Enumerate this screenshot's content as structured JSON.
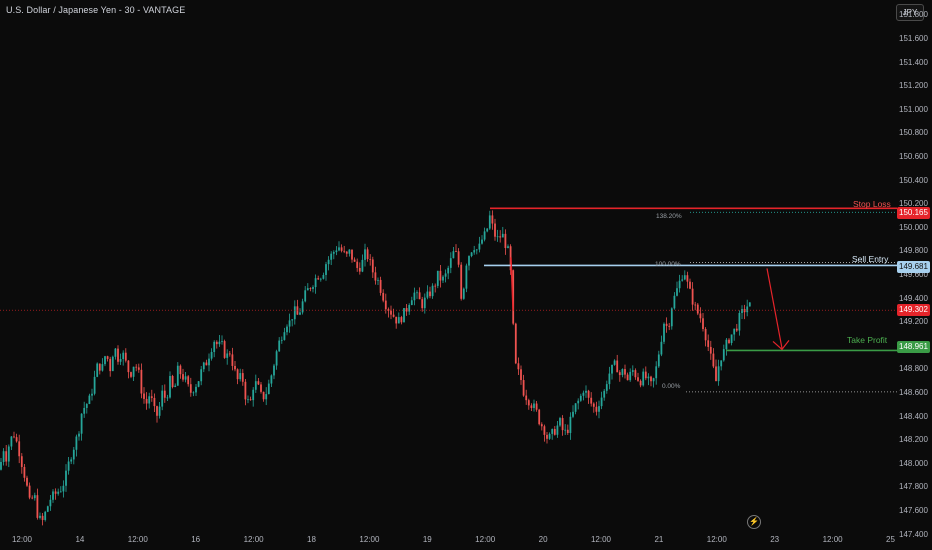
{
  "header": {
    "title": "U.S. Dollar / Japanese Yen - 30 - VANTAGE",
    "currency": "JPY"
  },
  "colors": {
    "up": "#26a69a",
    "down": "#ef5350",
    "stop": "#e5242a",
    "entry": "#a7d0ee",
    "profit": "#3a9b46",
    "current": "#e5242a"
  },
  "levels": {
    "stop_loss": {
      "label": "Stop Loss",
      "price": "150.165",
      "fib": "138.20%"
    },
    "sell_entry": {
      "label": "Sell Entry",
      "price": "149.681",
      "fib": "100.00%"
    },
    "take_profit": {
      "label": "Take Profit",
      "price": "148.961"
    },
    "fib_zero": {
      "fib": "0.00%",
      "value": 148.61
    },
    "current_price": "149.302"
  },
  "footer": {
    "icon": "lightning-icon"
  },
  "chart_data": {
    "type": "candlestick",
    "title": "U.S. Dollar / Japanese Yen - 30 - VANTAGE",
    "y_axis": {
      "ticks": [
        "151.800",
        "151.600",
        "151.400",
        "151.200",
        "151.000",
        "150.800",
        "150.600",
        "150.400",
        "150.200",
        "150.000",
        "149.800",
        "149.600",
        "149.400",
        "149.200",
        "149.000",
        "148.800",
        "148.600",
        "148.400",
        "148.200",
        "148.000",
        "147.800",
        "147.600",
        "147.400"
      ]
    },
    "x_axis": {
      "ticks": [
        "12:00",
        "14",
        "12:00",
        "16",
        "12:00",
        "18",
        "12:00",
        "19",
        "12:00",
        "20",
        "12:00",
        "21",
        "12:00",
        "23",
        "12:00",
        "25"
      ]
    },
    "ylim": [
      147.27,
      151.93
    ],
    "grid": false,
    "price_path": [
      [
        0,
        147.95
      ],
      [
        3,
        148.15
      ],
      [
        6,
        148.05
      ],
      [
        10,
        148.2
      ],
      [
        14,
        148.25
      ],
      [
        18,
        148.15
      ],
      [
        22,
        148.0
      ],
      [
        26,
        147.85
      ],
      [
        30,
        147.65
      ],
      [
        34,
        147.75
      ],
      [
        38,
        147.55
      ],
      [
        42,
        147.5
      ],
      [
        46,
        147.6
      ],
      [
        50,
        147.7
      ],
      [
        56,
        147.75
      ],
      [
        62,
        147.8
      ],
      [
        66,
        147.9
      ],
      [
        70,
        148.05
      ],
      [
        74,
        148.15
      ],
      [
        78,
        148.25
      ],
      [
        82,
        148.45
      ],
      [
        86,
        148.5
      ],
      [
        90,
        148.55
      ],
      [
        94,
        148.7
      ],
      [
        98,
        148.85
      ],
      [
        102,
        148.8
      ],
      [
        106,
        148.95
      ],
      [
        110,
        148.8
      ],
      [
        114,
        149.0
      ],
      [
        118,
        148.9
      ],
      [
        122,
        148.95
      ],
      [
        126,
        148.85
      ],
      [
        130,
        148.75
      ],
      [
        134,
        148.85
      ],
      [
        138,
        148.8
      ],
      [
        142,
        148.6
      ],
      [
        146,
        148.5
      ],
      [
        150,
        148.6
      ],
      [
        154,
        148.45
      ],
      [
        158,
        148.4
      ],
      [
        162,
        148.6
      ],
      [
        166,
        148.55
      ],
      [
        170,
        148.7
      ],
      [
        174,
        148.6
      ],
      [
        178,
        148.8
      ],
      [
        182,
        148.75
      ],
      [
        186,
        148.7
      ],
      [
        190,
        148.6
      ],
      [
        194,
        148.65
      ],
      [
        198,
        148.7
      ],
      [
        202,
        148.8
      ],
      [
        206,
        148.85
      ],
      [
        210,
        148.95
      ],
      [
        214,
        149.05
      ],
      [
        218,
        149.0
      ],
      [
        222,
        149.0
      ],
      [
        226,
        148.9
      ],
      [
        230,
        148.95
      ],
      [
        234,
        148.8
      ],
      [
        238,
        148.7
      ],
      [
        242,
        148.75
      ],
      [
        246,
        148.55
      ],
      [
        250,
        148.5
      ],
      [
        254,
        148.7
      ],
      [
        258,
        148.65
      ],
      [
        262,
        148.55
      ],
      [
        266,
        148.6
      ],
      [
        270,
        148.7
      ],
      [
        274,
        148.85
      ],
      [
        278,
        149.0
      ],
      [
        282,
        149.1
      ],
      [
        286,
        149.2
      ],
      [
        290,
        149.2
      ],
      [
        294,
        149.3
      ],
      [
        298,
        149.25
      ],
      [
        302,
        149.35
      ],
      [
        306,
        149.45
      ],
      [
        310,
        149.5
      ],
      [
        314,
        149.55
      ],
      [
        318,
        149.6
      ],
      [
        322,
        149.6
      ],
      [
        326,
        149.7
      ],
      [
        330,
        149.75
      ],
      [
        334,
        149.8
      ],
      [
        338,
        149.85
      ],
      [
        342,
        149.8
      ],
      [
        346,
        149.75
      ],
      [
        350,
        149.8
      ],
      [
        354,
        149.7
      ],
      [
        358,
        149.65
      ],
      [
        362,
        149.7
      ],
      [
        366,
        149.8
      ],
      [
        370,
        149.7
      ],
      [
        374,
        149.6
      ],
      [
        378,
        149.55
      ],
      [
        382,
        149.45
      ],
      [
        386,
        149.35
      ],
      [
        390,
        149.3
      ],
      [
        394,
        149.25
      ],
      [
        398,
        149.2
      ],
      [
        402,
        149.25
      ],
      [
        406,
        149.3
      ],
      [
        410,
        149.4
      ],
      [
        414,
        149.45
      ],
      [
        418,
        149.4
      ],
      [
        422,
        149.35
      ],
      [
        426,
        149.4
      ],
      [
        430,
        149.45
      ],
      [
        434,
        149.5
      ],
      [
        438,
        149.6
      ],
      [
        442,
        149.55
      ],
      [
        446,
        149.6
      ],
      [
        450,
        149.7
      ],
      [
        454,
        149.8
      ],
      [
        458,
        149.75
      ],
      [
        462,
        149.35
      ],
      [
        466,
        149.7
      ],
      [
        470,
        149.8
      ],
      [
        474,
        149.85
      ],
      [
        478,
        149.8
      ],
      [
        482,
        149.9
      ],
      [
        486,
        149.95
      ],
      [
        490,
        150.1
      ],
      [
        494,
        149.95
      ],
      [
        498,
        149.9
      ],
      [
        502,
        149.95
      ],
      [
        506,
        149.85
      ],
      [
        510,
        149.75
      ],
      [
        512,
        149.3
      ],
      [
        516,
        148.8
      ],
      [
        520,
        148.75
      ],
      [
        524,
        148.6
      ],
      [
        528,
        148.55
      ],
      [
        532,
        148.5
      ],
      [
        536,
        148.45
      ],
      [
        540,
        148.35
      ],
      [
        544,
        148.3
      ],
      [
        548,
        148.2
      ],
      [
        552,
        148.25
      ],
      [
        556,
        148.3
      ],
      [
        560,
        148.35
      ],
      [
        564,
        148.25
      ],
      [
        568,
        148.3
      ],
      [
        572,
        148.4
      ],
      [
        576,
        148.5
      ],
      [
        580,
        148.55
      ],
      [
        584,
        148.65
      ],
      [
        588,
        148.55
      ],
      [
        592,
        148.5
      ],
      [
        596,
        148.45
      ],
      [
        600,
        148.55
      ],
      [
        604,
        148.6
      ],
      [
        608,
        148.75
      ],
      [
        612,
        148.8
      ],
      [
        616,
        148.85
      ],
      [
        620,
        148.75
      ],
      [
        624,
        148.8
      ],
      [
        628,
        148.7
      ],
      [
        632,
        148.8
      ],
      [
        636,
        148.75
      ],
      [
        640,
        148.7
      ],
      [
        644,
        148.75
      ],
      [
        648,
        148.7
      ],
      [
        652,
        148.65
      ],
      [
        656,
        148.8
      ],
      [
        660,
        149.0
      ],
      [
        664,
        149.2
      ],
      [
        668,
        149.15
      ],
      [
        672,
        149.35
      ],
      [
        676,
        149.45
      ],
      [
        680,
        149.55
      ],
      [
        684,
        149.65
      ],
      [
        688,
        149.5
      ],
      [
        692,
        149.4
      ],
      [
        696,
        149.3
      ],
      [
        700,
        149.25
      ],
      [
        704,
        149.15
      ],
      [
        708,
        149.0
      ],
      [
        712,
        148.85
      ],
      [
        716,
        148.7
      ],
      [
        720,
        148.9
      ],
      [
        724,
        148.95
      ],
      [
        728,
        149.05
      ],
      [
        732,
        149.1
      ],
      [
        736,
        149.15
      ],
      [
        740,
        149.25
      ],
      [
        744,
        149.3
      ],
      [
        748,
        149.35
      ],
      [
        752,
        149.32
      ]
    ]
  }
}
